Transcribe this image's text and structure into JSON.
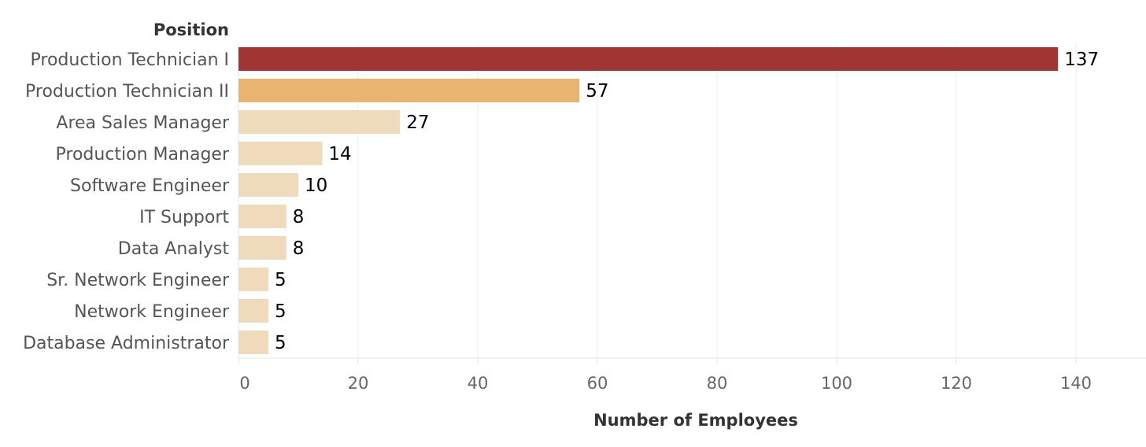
{
  "chart_data": {
    "type": "bar",
    "orientation": "horizontal",
    "category_header": "Position",
    "xlabel": "Number of Employees",
    "categories": [
      "Production Technician I",
      "Production Technician II",
      "Area Sales Manager",
      "Production Manager",
      "Software Engineer",
      "IT Support",
      "Data Analyst",
      "Sr. Network Engineer",
      "Network Engineer",
      "Database Administrator"
    ],
    "values": [
      137,
      57,
      27,
      14,
      10,
      8,
      8,
      5,
      5,
      5
    ],
    "value_labels": [
      "137",
      "57",
      "27",
      "14",
      "10",
      "8",
      "8",
      "5",
      "5",
      "5"
    ],
    "bar_colors": [
      "#a03533",
      "#e8b470",
      "#efdabb",
      "#efdabb",
      "#efdabb",
      "#efdabb",
      "#efdabb",
      "#efdabb",
      "#efdabb",
      "#efdabb"
    ],
    "xlim": [
      0,
      150
    ],
    "xticks": [
      0,
      20,
      40,
      60,
      80,
      100,
      120,
      140
    ],
    "xtick_labels": [
      "0",
      "20",
      "40",
      "60",
      "80",
      "100",
      "120",
      "140"
    ],
    "grid": "vertical",
    "legend": "none"
  }
}
